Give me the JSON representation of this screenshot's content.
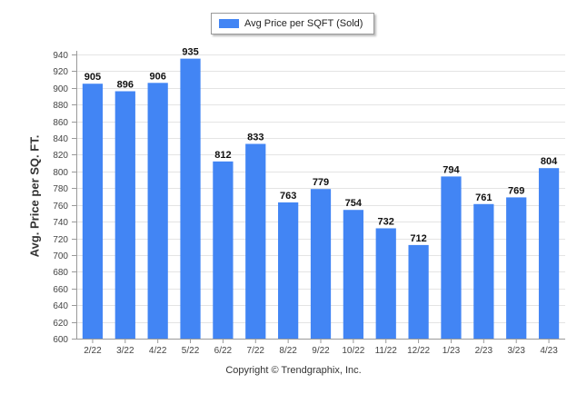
{
  "chart_data": {
    "type": "bar",
    "categories": [
      "2/22",
      "3/22",
      "4/22",
      "5/22",
      "6/22",
      "7/22",
      "8/22",
      "9/22",
      "10/22",
      "11/22",
      "12/22",
      "1/23",
      "2/23",
      "3/23",
      "4/23"
    ],
    "series": [
      {
        "name": "Avg Price per SQFT (Sold)",
        "values": [
          905,
          896,
          906,
          935,
          812,
          833,
          763,
          779,
          754,
          732,
          712,
          794,
          761,
          769,
          804
        ]
      }
    ],
    "ylabel": "Avg. Price per SQ. FT.",
    "ylim": [
      600,
      940
    ],
    "yticks": [
      600,
      620,
      640,
      660,
      680,
      700,
      720,
      740,
      760,
      780,
      800,
      820,
      840,
      860,
      880,
      900,
      920,
      940
    ],
    "grid": true,
    "legend_position": "top-center",
    "bar_color": "#4285f4"
  },
  "footer": "Copyright © Trendgraphix, Inc."
}
